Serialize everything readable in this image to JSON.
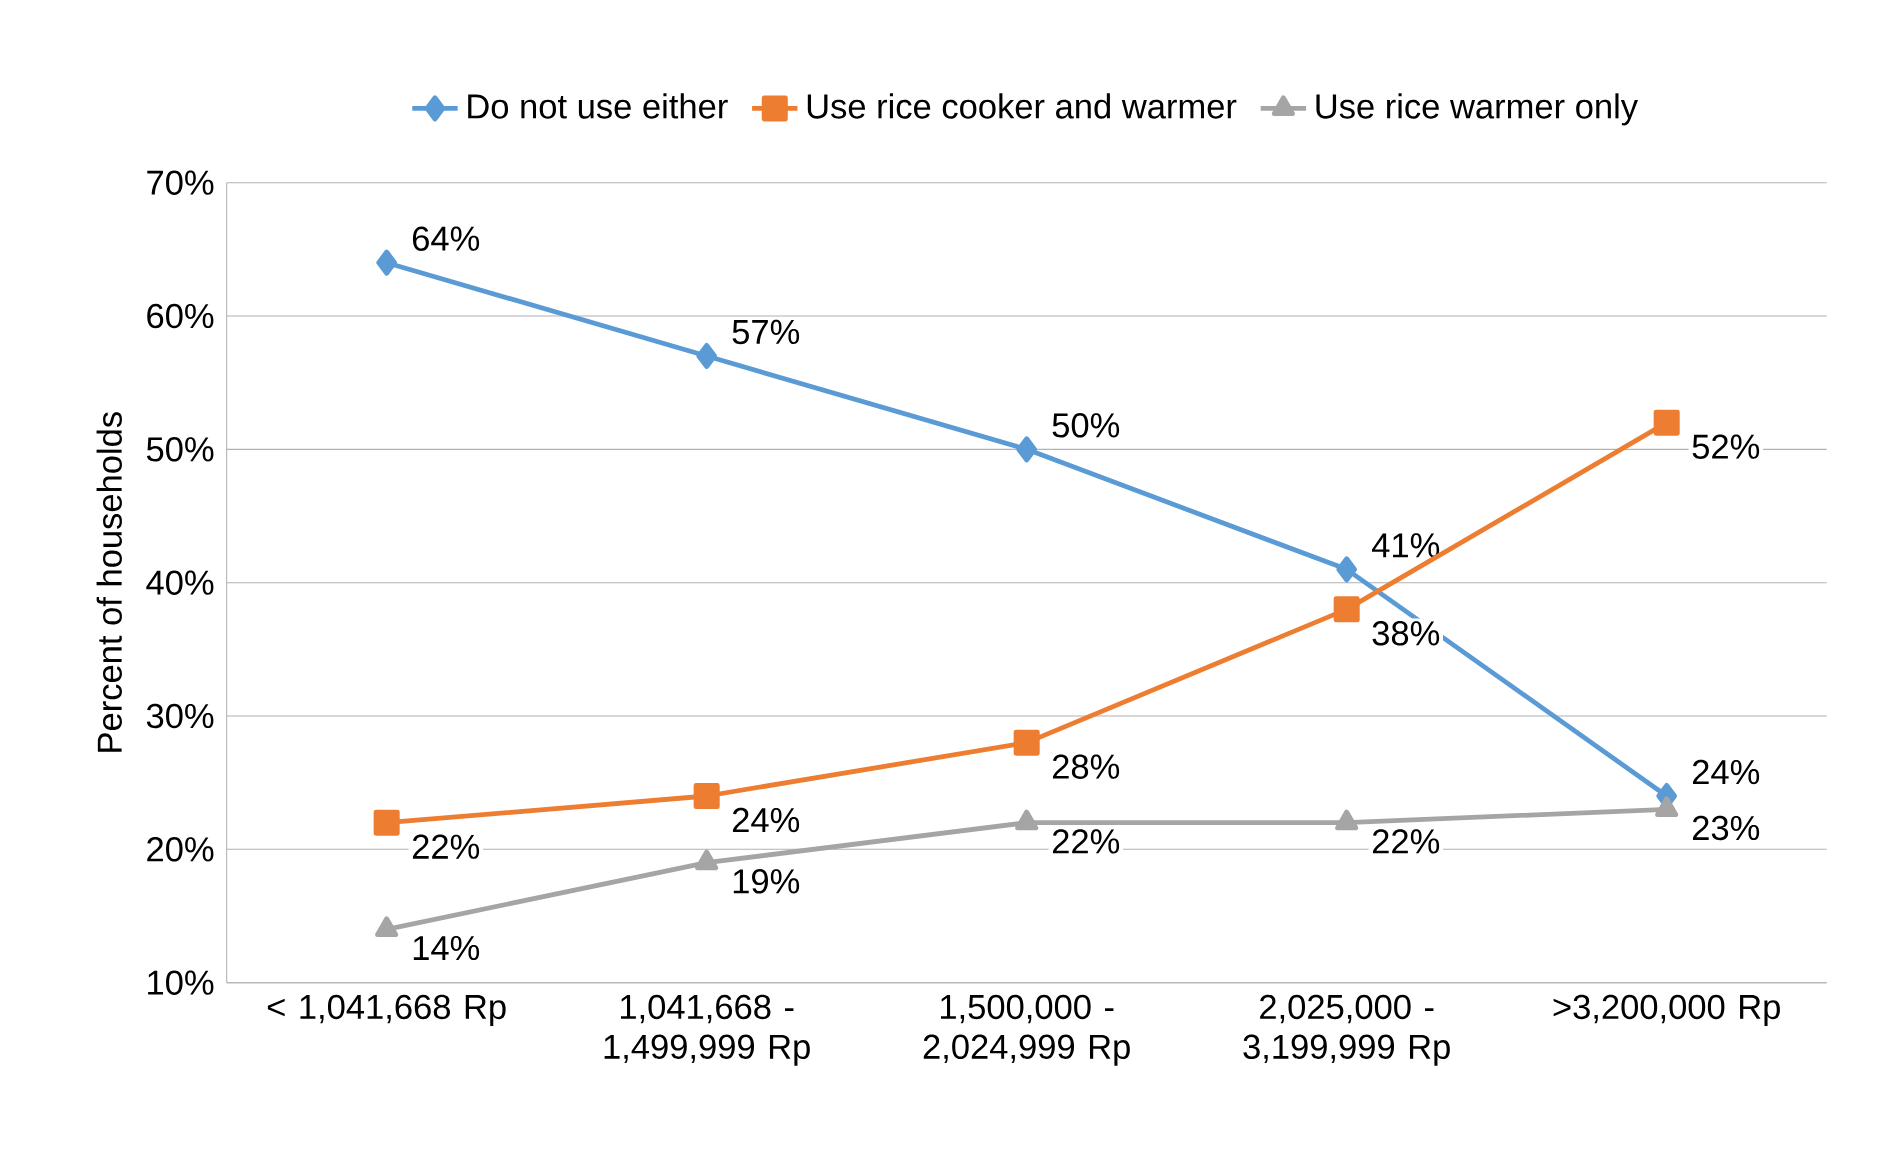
{
  "chart_data": {
    "type": "line",
    "ylabel": "Percent of households",
    "categories": [
      "< 1,041,668 Rp",
      "1,041,668 - 1,499,999 Rp",
      "1,500,000 - 2,024,999 Rp",
      "2,025,000 - 3,199,999 Rp",
      ">3,200,000 Rp"
    ],
    "series": [
      {
        "name": "Do not use either",
        "color": "#5b9bd5",
        "marker": "diamond",
        "values": [
          64,
          57,
          50,
          41,
          24
        ],
        "value_labels": [
          "64%",
          "57%",
          "50%",
          "41%",
          "24%"
        ]
      },
      {
        "name": "Use rice cooker and warmer",
        "color": "#ed7d31",
        "marker": "square",
        "values": [
          22,
          24,
          28,
          38,
          52
        ],
        "value_labels": [
          "22%",
          "24%",
          "28%",
          "38%",
          "52%"
        ]
      },
      {
        "name": "Use rice warmer only",
        "color": "#a5a5a5",
        "marker": "triangle",
        "values": [
          14,
          19,
          22,
          22,
          23
        ],
        "value_labels": [
          "14%",
          "19%",
          "22%",
          "22%",
          "23%"
        ]
      }
    ],
    "ylim": [
      10,
      70
    ],
    "yticks": [
      {
        "value": 10,
        "label": "10%"
      },
      {
        "value": 20,
        "label": "20%"
      },
      {
        "value": 30,
        "label": "30%"
      },
      {
        "value": 40,
        "label": "40%"
      },
      {
        "value": 50,
        "label": "50%"
      },
      {
        "value": 60,
        "label": "60%"
      },
      {
        "value": 70,
        "label": "70%"
      }
    ],
    "grid": "y",
    "legend": "top"
  }
}
